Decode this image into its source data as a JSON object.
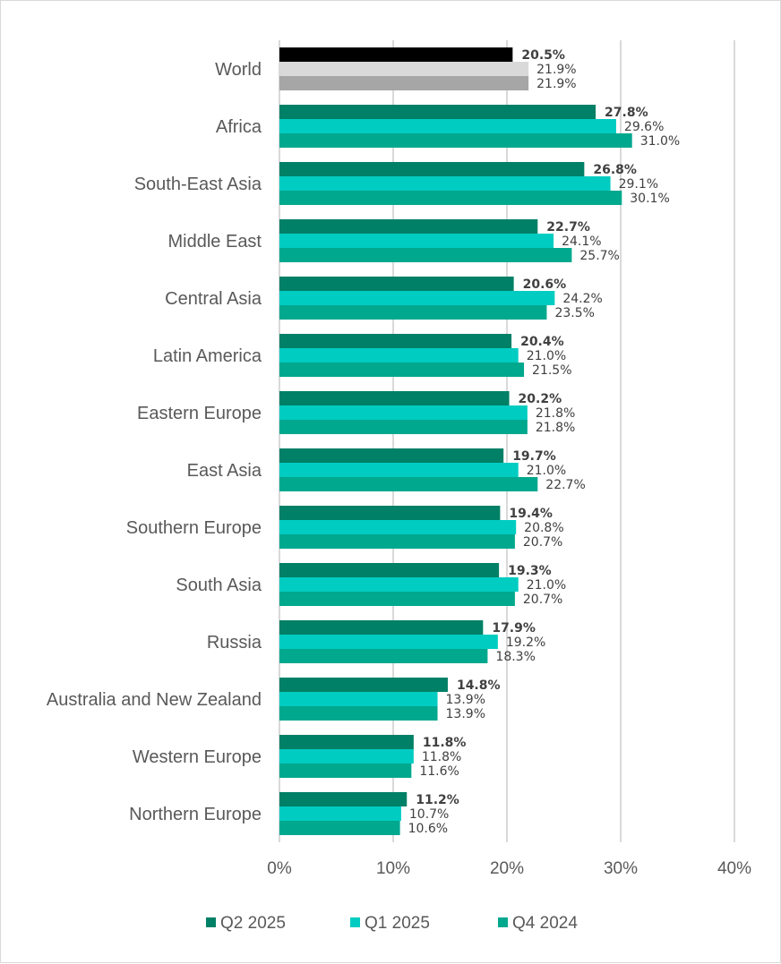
{
  "chart_data": {
    "type": "bar",
    "orientation": "horizontal",
    "categories": [
      "World",
      "Africa",
      "South-East Asia",
      "Middle East",
      "Central Asia",
      "Latin America",
      "Eastern Europe",
      "East Asia",
      "Southern Europe",
      "South Asia",
      "Russia",
      "Australia and New Zealand",
      "Western Europe",
      "Northern Europe"
    ],
    "series": [
      {
        "name": "Q2 2025",
        "color": "#008066",
        "values": [
          20.5,
          27.8,
          26.8,
          22.7,
          20.6,
          20.4,
          20.2,
          19.7,
          19.4,
          19.3,
          17.9,
          14.8,
          11.8,
          11.2
        ]
      },
      {
        "name": "Q1 2025",
        "color": "#00CCC1",
        "values": [
          21.9,
          29.6,
          29.1,
          24.1,
          24.2,
          21.0,
          21.8,
          21.0,
          20.8,
          21.0,
          19.2,
          13.9,
          11.8,
          10.7
        ]
      },
      {
        "name": "Q4 2024",
        "color": "#00A88E",
        "values": [
          21.9,
          31.0,
          30.1,
          25.7,
          23.5,
          21.5,
          21.8,
          22.7,
          20.7,
          20.7,
          18.3,
          13.9,
          11.6,
          10.6
        ]
      }
    ],
    "world_colors": [
      "#000000",
      "#D9D9D9",
      "#A6A6A6"
    ],
    "data_label_format": "{v}%",
    "xlim": [
      0,
      40
    ],
    "xticks": [
      "0%",
      "10%",
      "20%",
      "30%",
      "40%"
    ],
    "grid": true,
    "legend": "bottom"
  }
}
